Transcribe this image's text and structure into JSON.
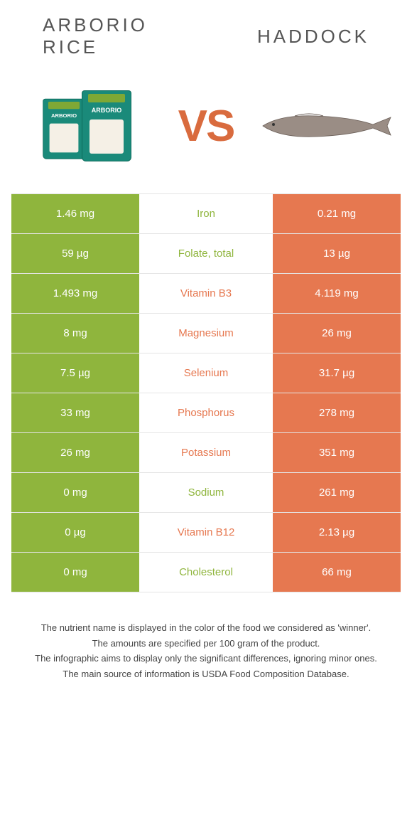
{
  "header": {
    "left_title_line1": "ARBORIO",
    "left_title_line2": "RICE",
    "right_title": "HADDOCK",
    "vs": "VS",
    "rice_label": "ARBORIO"
  },
  "colors": {
    "green": "#8fb53d",
    "orange": "#e67850"
  },
  "rows": [
    {
      "left": "1.46 mg",
      "label": "Iron",
      "right": "0.21 mg",
      "winner": "left"
    },
    {
      "left": "59 µg",
      "label": "Folate, total",
      "right": "13 µg",
      "winner": "left"
    },
    {
      "left": "1.493 mg",
      "label": "Vitamin B3",
      "right": "4.119 mg",
      "winner": "right"
    },
    {
      "left": "8 mg",
      "label": "Magnesium",
      "right": "26 mg",
      "winner": "right"
    },
    {
      "left": "7.5 µg",
      "label": "Selenium",
      "right": "31.7 µg",
      "winner": "right"
    },
    {
      "left": "33 mg",
      "label": "Phosphorus",
      "right": "278 mg",
      "winner": "right"
    },
    {
      "left": "26 mg",
      "label": "Potassium",
      "right": "351 mg",
      "winner": "right"
    },
    {
      "left": "0 mg",
      "label": "Sodium",
      "right": "261 mg",
      "winner": "left"
    },
    {
      "left": "0 µg",
      "label": "Vitamin B12",
      "right": "2.13 µg",
      "winner": "right"
    },
    {
      "left": "0 mg",
      "label": "Cholesterol",
      "right": "66 mg",
      "winner": "left"
    }
  ],
  "footnotes": [
    "The nutrient name is displayed in the color of the food we considered as 'winner'.",
    "The amounts are specified per 100 gram of the product.",
    "The infographic aims to display only the significant differences, ignoring minor ones.",
    "The main source of information is USDA Food Composition Database."
  ]
}
